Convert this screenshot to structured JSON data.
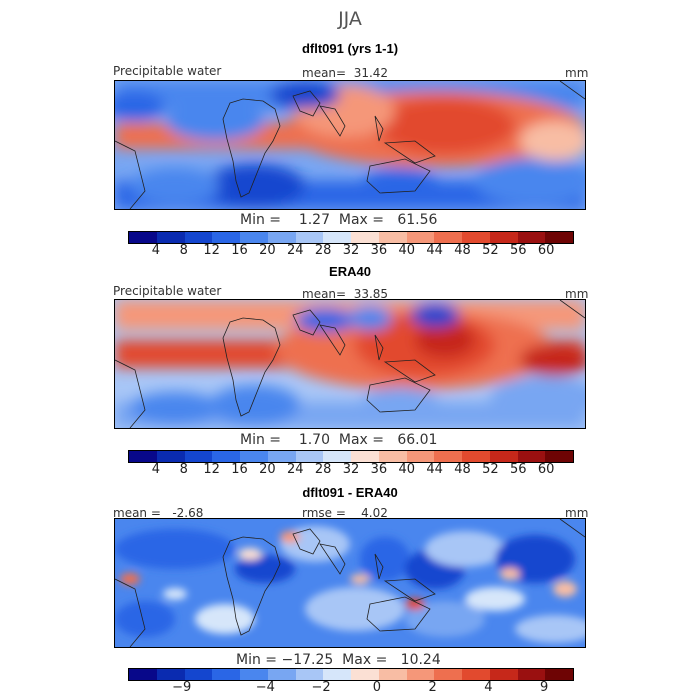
{
  "figure": {
    "season": "JJA"
  },
  "palette": {
    "abs": [
      "#08088a",
      "#0a2bb0",
      "#1446cf",
      "#2a66e6",
      "#4a86ee",
      "#78a6f2",
      "#a8c6f6",
      "#d6e6fa",
      "#fbe0d4",
      "#f8bda4",
      "#f59779",
      "#ee6f4f",
      "#e24a2e",
      "#c6281a",
      "#9a1010",
      "#6e0404"
    ],
    "diff": [
      "#08088a",
      "#0a2bb0",
      "#1446cf",
      "#2a66e6",
      "#4a86ee",
      "#78a6f2",
      "#a8c6f6",
      "#d6e6fa",
      "#fbe0d4",
      "#f8bda4",
      "#f59779",
      "#ee6f4f",
      "#e24a2e",
      "#c6281a",
      "#9a1010",
      "#6e0404"
    ]
  },
  "panels": [
    {
      "title": "dflt091 (yrs 1-1)",
      "left_label": "Precipitable water",
      "center_label": "mean=  31.42",
      "units": "mm",
      "minmax": "Min =    1.27  Max =   61.56",
      "ticks": [
        "4",
        "8",
        "12",
        "16",
        "20",
        "24",
        "28",
        "32",
        "36",
        "40",
        "44",
        "48",
        "52",
        "56",
        "60"
      ]
    },
    {
      "title": "ERA40",
      "left_label": "Precipitable water",
      "center_label": "mean=  33.85",
      "units": "mm",
      "minmax": "Min =    1.70  Max =   66.01",
      "ticks": [
        "4",
        "8",
        "12",
        "16",
        "20",
        "24",
        "28",
        "32",
        "36",
        "40",
        "44",
        "48",
        "52",
        "56",
        "60"
      ]
    },
    {
      "title": "dflt091 - ERA40",
      "left_label": "mean =   -2.68",
      "center_label": "rmse =    4.02",
      "units": "mm",
      "minmax": "Min = −17.25  Max =   10.24",
      "ticks": [
        "−9",
        "−4",
        "−2",
        "0",
        "2",
        "4",
        "9"
      ]
    }
  ]
}
